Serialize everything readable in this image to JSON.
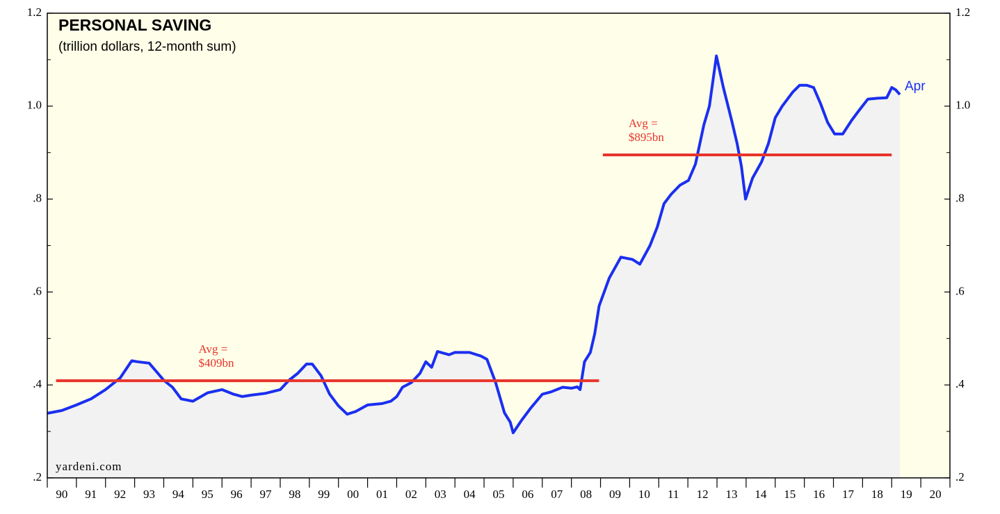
{
  "chart_data": {
    "type": "line",
    "title": "PERSONAL SAVING",
    "subtitle": "(trillion dollars, 12-month sum)",
    "source": "yardeni.com",
    "series": [
      {
        "name": "Apr",
        "color": "#1a2ff0",
        "x": [
          1990.0,
          1990.5,
          1991.0,
          1991.5,
          1992.0,
          1992.5,
          1992.9,
          1993.1,
          1993.5,
          1993.8,
          1994.0,
          1994.3,
          1994.6,
          1995.0,
          1995.5,
          1996.0,
          1996.4,
          1996.7,
          1997.0,
          1997.5,
          1998.0,
          1998.3,
          1998.6,
          1998.9,
          1999.1,
          1999.4,
          1999.7,
          2000.0,
          2000.3,
          2000.6,
          2001.0,
          2001.5,
          2001.8,
          2002.0,
          2002.2,
          2002.5,
          2002.8,
          2003.0,
          2003.2,
          2003.4,
          2003.8,
          2004.0,
          2004.5,
          2004.9,
          2005.1,
          2005.4,
          2005.7,
          2005.9,
          2006.0,
          2006.3,
          2006.6,
          2007.0,
          2007.3,
          2007.7,
          2008.0,
          2008.2,
          2008.3,
          2008.45,
          2008.65,
          2008.8,
          2008.95,
          2009.3,
          2009.7,
          2010.1,
          2010.35,
          2010.7,
          2010.95,
          2011.18,
          2011.42,
          2011.73,
          2012.02,
          2012.26,
          2012.55,
          2012.74,
          2012.98,
          2013.22,
          2013.5,
          2013.69,
          2013.84,
          2013.98,
          2014.22,
          2014.53,
          2014.77,
          2015.0,
          2015.24,
          2015.6,
          2015.84,
          2016.08,
          2016.32,
          2016.56,
          2016.8,
          2017.04,
          2017.32,
          2017.63,
          2017.87,
          2018.18,
          2018.52,
          2018.83,
          2019.0,
          2019.14,
          2019.28
        ],
        "values": [
          0.339,
          0.345,
          0.357,
          0.37,
          0.39,
          0.415,
          0.452,
          0.45,
          0.447,
          0.425,
          0.41,
          0.395,
          0.37,
          0.365,
          0.383,
          0.39,
          0.38,
          0.375,
          0.378,
          0.382,
          0.39,
          0.41,
          0.425,
          0.445,
          0.445,
          0.42,
          0.38,
          0.355,
          0.337,
          0.343,
          0.357,
          0.36,
          0.365,
          0.375,
          0.395,
          0.405,
          0.425,
          0.45,
          0.438,
          0.472,
          0.465,
          0.47,
          0.47,
          0.462,
          0.455,
          0.405,
          0.34,
          0.32,
          0.297,
          0.325,
          0.35,
          0.38,
          0.385,
          0.395,
          0.393,
          0.396,
          0.39,
          0.45,
          0.47,
          0.51,
          0.57,
          0.63,
          0.675,
          0.67,
          0.66,
          0.7,
          0.74,
          0.79,
          0.81,
          0.83,
          0.84,
          0.875,
          0.96,
          1.0,
          1.108,
          1.04,
          0.97,
          0.92,
          0.87,
          0.8,
          0.845,
          0.88,
          0.92,
          0.975,
          1.0,
          1.03,
          1.045,
          1.045,
          1.04,
          1.005,
          0.965,
          0.94,
          0.94,
          0.97,
          0.99,
          1.015,
          1.017,
          1.018,
          1.04,
          1.035,
          1.025
        ]
      }
    ],
    "averages": [
      {
        "value": 0.409,
        "label": [
          "Avg =",
          "$409bn"
        ],
        "x": [
          1990.3,
          2008.95
        ],
        "color": "#e8342b"
      },
      {
        "value": 0.895,
        "label": [
          "Avg =",
          "$895bn"
        ],
        "x": [
          2009.08,
          2019.0
        ],
        "color": "#e8342b"
      }
    ],
    "xlim": [
      1990,
      2021
    ],
    "xticks": [
      1990,
      1991,
      1992,
      1993,
      1994,
      1995,
      1996,
      1997,
      1998,
      1999,
      2000,
      2001,
      2002,
      2003,
      2004,
      2005,
      2006,
      2007,
      2008,
      2009,
      2010,
      2011,
      2012,
      2013,
      2014,
      2015,
      2016,
      2017,
      2018,
      2019,
      2020,
      2021
    ],
    "xtick_labels": [
      {
        "value": 1990.5,
        "label": "90"
      },
      {
        "value": 1991.5,
        "label": "91"
      },
      {
        "value": 1992.5,
        "label": "92"
      },
      {
        "value": 1993.5,
        "label": "93"
      },
      {
        "value": 1994.5,
        "label": "94"
      },
      {
        "value": 1995.5,
        "label": "95"
      },
      {
        "value": 1996.5,
        "label": "96"
      },
      {
        "value": 1997.5,
        "label": "97"
      },
      {
        "value": 1998.5,
        "label": "98"
      },
      {
        "value": 1999.5,
        "label": "99"
      },
      {
        "value": 2000.5,
        "label": "00"
      },
      {
        "value": 2001.5,
        "label": "01"
      },
      {
        "value": 2002.5,
        "label": "02"
      },
      {
        "value": 2003.5,
        "label": "03"
      },
      {
        "value": 2004.5,
        "label": "04"
      },
      {
        "value": 2005.5,
        "label": "05"
      },
      {
        "value": 2006.5,
        "label": "06"
      },
      {
        "value": 2007.5,
        "label": "07"
      },
      {
        "value": 2008.5,
        "label": "08"
      },
      {
        "value": 2009.5,
        "label": "09"
      },
      {
        "value": 2010.5,
        "label": "10"
      },
      {
        "value": 2011.5,
        "label": "11"
      },
      {
        "value": 2012.5,
        "label": "12"
      },
      {
        "value": 2013.5,
        "label": "13"
      },
      {
        "value": 2014.5,
        "label": "14"
      },
      {
        "value": 2015.5,
        "label": "15"
      },
      {
        "value": 2016.5,
        "label": "16"
      },
      {
        "value": 2017.5,
        "label": "17"
      },
      {
        "value": 2018.5,
        "label": "18"
      },
      {
        "value": 2019.5,
        "label": "19"
      },
      {
        "value": 2020.5,
        "label": "20"
      }
    ],
    "ylim": [
      0.2,
      1.2
    ],
    "yticks": [
      {
        "value": 0.2,
        "label": ".2"
      },
      {
        "value": 0.4,
        "label": ".4"
      },
      {
        "value": 0.6,
        "label": ".6"
      },
      {
        "value": 0.8,
        "label": ".8"
      },
      {
        "value": 1.0,
        "label": "1.0"
      },
      {
        "value": 1.2,
        "label": "1.2"
      }
    ],
    "yminor": [
      0.3,
      0.5,
      0.7,
      0.9,
      1.1
    ],
    "right_axis": true,
    "background": "#fffee8",
    "area_color": "#f2f2f2"
  }
}
